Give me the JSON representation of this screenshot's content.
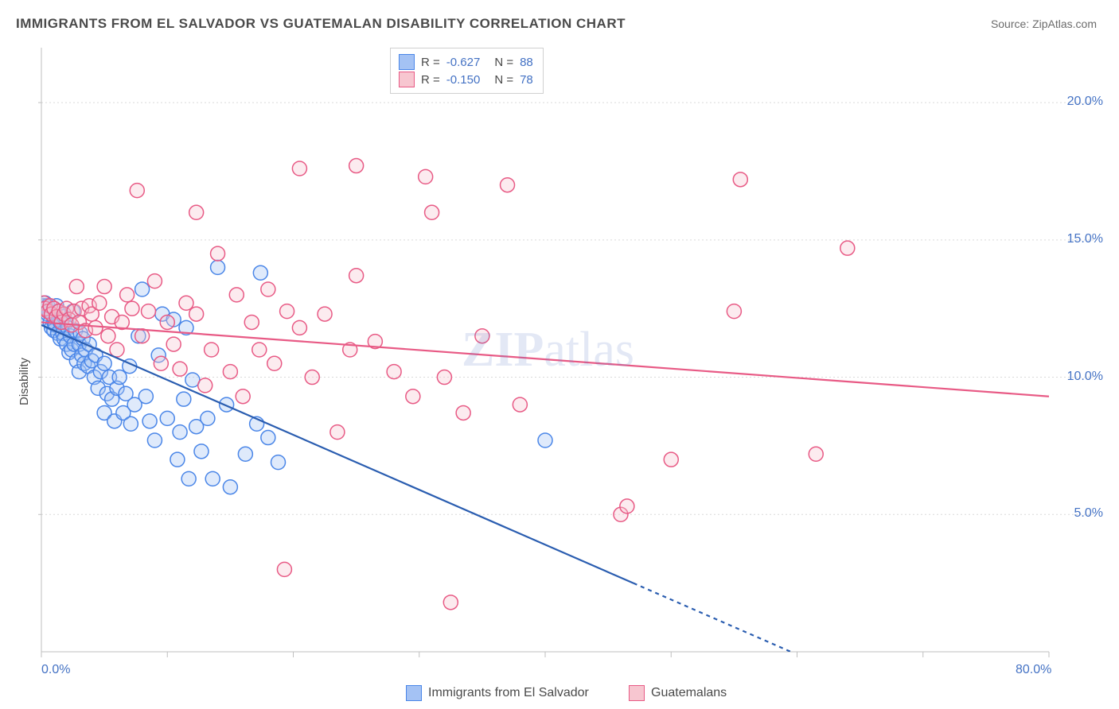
{
  "title": "IMMIGRANTS FROM EL SALVADOR VS GUATEMALAN DISABILITY CORRELATION CHART",
  "source": "Source: ZipAtlas.com",
  "watermark": "ZIPatlas",
  "chart": {
    "type": "scatter",
    "background_color": "#ffffff",
    "grid_color": "#d9d9d9",
    "axis_color": "#bfbfbf",
    "tick_font_color": "#4472c4",
    "tick_font_size": 16,
    "title_font_size": 17,
    "title_color": "#4a4a4a",
    "y_label": "Disability",
    "y_label_font_size": 15,
    "x_range": [
      0,
      80
    ],
    "y_range": [
      0,
      22
    ],
    "x_ticks_major": [
      0,
      10,
      20,
      30,
      40,
      50,
      60,
      70,
      80
    ],
    "x_tick_labels": {
      "0": "0.0%",
      "80": "80.0%"
    },
    "y_ticks_major": [
      5,
      10,
      15,
      20
    ],
    "y_tick_labels": {
      "5": "5.0%",
      "10": "10.0%",
      "15": "15.0%",
      "20": "20.0%"
    },
    "marker_radius": 9,
    "marker_fill_opacity": 0.35,
    "marker_stroke_width": 1.5,
    "line_width": 2.2,
    "series": [
      {
        "name": "Immigrants from El Salvador",
        "marker_fill": "#a4c2f4",
        "marker_stroke": "#4a86e8",
        "line_color": "#2a5db0",
        "R": "-0.627",
        "N": "88",
        "trend_start": [
          0,
          11.9
        ],
        "trend_end_solid": [
          47,
          2.5
        ],
        "trend_end_dashed": [
          73,
          -2.7
        ],
        "points": [
          [
            0.2,
            12.6
          ],
          [
            0.3,
            12.5
          ],
          [
            0.3,
            12.7
          ],
          [
            0.5,
            12.6
          ],
          [
            0.5,
            12.3
          ],
          [
            0.6,
            12.4
          ],
          [
            0.7,
            12.0
          ],
          [
            0.8,
            12.3
          ],
          [
            0.8,
            11.8
          ],
          [
            1.0,
            12.0
          ],
          [
            1.0,
            11.7
          ],
          [
            1.1,
            11.9
          ],
          [
            1.2,
            12.6
          ],
          [
            1.2,
            12.2
          ],
          [
            1.3,
            12.4
          ],
          [
            1.3,
            11.6
          ],
          [
            1.4,
            12.1
          ],
          [
            1.5,
            12.0
          ],
          [
            1.5,
            11.4
          ],
          [
            1.6,
            12.0
          ],
          [
            1.7,
            11.6
          ],
          [
            1.8,
            11.4
          ],
          [
            1.8,
            12.2
          ],
          [
            2.0,
            11.2
          ],
          [
            2.0,
            12.0
          ],
          [
            2.1,
            11.8
          ],
          [
            2.2,
            10.9
          ],
          [
            2.3,
            11.5
          ],
          [
            2.4,
            11.0
          ],
          [
            2.5,
            12.4
          ],
          [
            2.6,
            11.2
          ],
          [
            2.7,
            11.7
          ],
          [
            2.8,
            10.6
          ],
          [
            3.0,
            11.2
          ],
          [
            3.0,
            10.2
          ],
          [
            3.1,
            11.6
          ],
          [
            3.2,
            10.8
          ],
          [
            3.3,
            11.4
          ],
          [
            3.4,
            10.5
          ],
          [
            3.5,
            11.0
          ],
          [
            3.7,
            10.4
          ],
          [
            3.8,
            11.2
          ],
          [
            4.0,
            10.6
          ],
          [
            4.2,
            10.0
          ],
          [
            4.3,
            10.8
          ],
          [
            4.5,
            9.6
          ],
          [
            4.7,
            10.2
          ],
          [
            5.0,
            8.7
          ],
          [
            5.0,
            10.5
          ],
          [
            5.2,
            9.4
          ],
          [
            5.4,
            10.0
          ],
          [
            5.6,
            9.2
          ],
          [
            5.8,
            8.4
          ],
          [
            6.0,
            9.6
          ],
          [
            6.2,
            10.0
          ],
          [
            6.5,
            8.7
          ],
          [
            6.7,
            9.4
          ],
          [
            7.0,
            10.4
          ],
          [
            7.1,
            8.3
          ],
          [
            7.4,
            9.0
          ],
          [
            7.7,
            11.5
          ],
          [
            8.0,
            13.2
          ],
          [
            8.3,
            9.3
          ],
          [
            8.6,
            8.4
          ],
          [
            9.0,
            7.7
          ],
          [
            9.3,
            10.8
          ],
          [
            9.6,
            12.3
          ],
          [
            10.0,
            8.5
          ],
          [
            10.5,
            12.1
          ],
          [
            10.8,
            7.0
          ],
          [
            11.0,
            8.0
          ],
          [
            11.3,
            9.2
          ],
          [
            11.5,
            11.8
          ],
          [
            11.7,
            6.3
          ],
          [
            12.0,
            9.9
          ],
          [
            12.3,
            8.2
          ],
          [
            12.7,
            7.3
          ],
          [
            13.2,
            8.5
          ],
          [
            13.6,
            6.3
          ],
          [
            14.0,
            14.0
          ],
          [
            14.7,
            9.0
          ],
          [
            15.0,
            6.0
          ],
          [
            16.2,
            7.2
          ],
          [
            17.1,
            8.3
          ],
          [
            17.4,
            13.8
          ],
          [
            18.0,
            7.8
          ],
          [
            18.8,
            6.9
          ],
          [
            40.0,
            7.7
          ]
        ]
      },
      {
        "name": "Guatemalans",
        "marker_fill": "#f7c6d0",
        "marker_stroke": "#e85a85",
        "line_color": "#e85a85",
        "R": "-0.150",
        "N": "78",
        "trend_start": [
          0,
          12.0
        ],
        "trend_end_solid": [
          80,
          9.3
        ],
        "trend_end_dashed": [
          80,
          9.3
        ],
        "points": [
          [
            0.2,
            12.7
          ],
          [
            0.3,
            12.5
          ],
          [
            0.5,
            12.4
          ],
          [
            0.7,
            12.6
          ],
          [
            0.8,
            12.3
          ],
          [
            1.0,
            12.5
          ],
          [
            1.2,
            12.2
          ],
          [
            1.4,
            12.4
          ],
          [
            1.6,
            12.0
          ],
          [
            1.8,
            12.3
          ],
          [
            2.0,
            12.5
          ],
          [
            2.2,
            12.1
          ],
          [
            2.4,
            11.9
          ],
          [
            2.6,
            12.4
          ],
          [
            2.8,
            13.3
          ],
          [
            3.0,
            12.0
          ],
          [
            3.2,
            12.5
          ],
          [
            3.5,
            11.7
          ],
          [
            3.8,
            12.6
          ],
          [
            4.0,
            12.3
          ],
          [
            4.3,
            11.8
          ],
          [
            4.6,
            12.7
          ],
          [
            5.0,
            13.3
          ],
          [
            5.3,
            11.5
          ],
          [
            5.6,
            12.2
          ],
          [
            6.0,
            11.0
          ],
          [
            6.4,
            12.0
          ],
          [
            6.8,
            13.0
          ],
          [
            7.2,
            12.5
          ],
          [
            7.6,
            16.8
          ],
          [
            8.0,
            11.5
          ],
          [
            8.5,
            12.4
          ],
          [
            9.0,
            13.5
          ],
          [
            9.5,
            10.5
          ],
          [
            10.0,
            12.0
          ],
          [
            10.5,
            11.2
          ],
          [
            11.0,
            10.3
          ],
          [
            11.5,
            12.7
          ],
          [
            12.3,
            12.3
          ],
          [
            12.3,
            16.0
          ],
          [
            13.0,
            9.7
          ],
          [
            13.5,
            11.0
          ],
          [
            14.0,
            14.5
          ],
          [
            15.0,
            10.2
          ],
          [
            15.5,
            13.0
          ],
          [
            16.0,
            9.3
          ],
          [
            16.7,
            12.0
          ],
          [
            17.3,
            11.0
          ],
          [
            18.0,
            13.2
          ],
          [
            18.5,
            10.5
          ],
          [
            19.3,
            3.0
          ],
          [
            19.5,
            12.4
          ],
          [
            20.5,
            11.8
          ],
          [
            20.5,
            17.6
          ],
          [
            21.5,
            10.0
          ],
          [
            22.5,
            12.3
          ],
          [
            23.5,
            8.0
          ],
          [
            24.5,
            11.0
          ],
          [
            25.0,
            17.7
          ],
          [
            25.0,
            13.7
          ],
          [
            26.5,
            11.3
          ],
          [
            28.0,
            10.2
          ],
          [
            29.5,
            9.3
          ],
          [
            30.5,
            17.3
          ],
          [
            31.0,
            16.0
          ],
          [
            32.0,
            10.0
          ],
          [
            33.5,
            8.7
          ],
          [
            35.0,
            11.5
          ],
          [
            37.0,
            17.0
          ],
          [
            38.0,
            9.0
          ],
          [
            32.5,
            1.8
          ],
          [
            46.0,
            5.0
          ],
          [
            46.5,
            5.3
          ],
          [
            50.0,
            7.0
          ],
          [
            55.0,
            12.4
          ],
          [
            55.5,
            17.2
          ],
          [
            61.5,
            7.2
          ],
          [
            64.0,
            14.7
          ]
        ]
      }
    ],
    "bottom_legend": [
      {
        "label": "Immigrants from El Salvador",
        "fill": "#a4c2f4",
        "stroke": "#4a86e8"
      },
      {
        "label": "Guatemalans",
        "fill": "#f7c6d0",
        "stroke": "#e85a85"
      }
    ],
    "legend_box": {
      "border_color": "#d0d0d0",
      "font_size": 15,
      "text_color": "#4a4a4a",
      "value_color": "#4472c4"
    }
  }
}
